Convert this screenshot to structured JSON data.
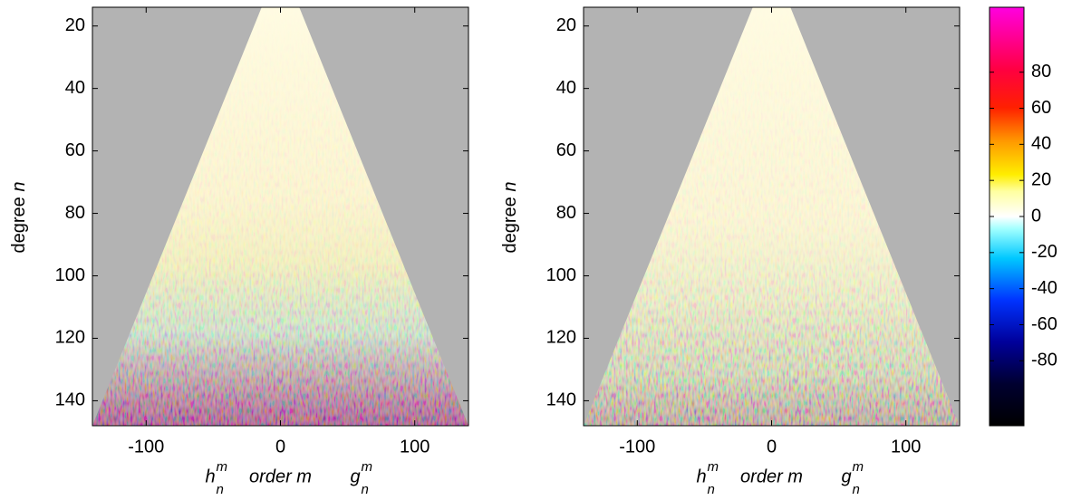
{
  "charts": [
    {
      "type": "heatmap",
      "ylabel": {
        "text": "degree",
        "var": "n"
      },
      "xlabel": {
        "left": {
          "base": "h",
          "sup": "m",
          "sub": "n"
        },
        "center": "order m",
        "right": {
          "base": "g",
          "sup": "m",
          "sub": "n"
        }
      },
      "xlim": [
        -140,
        140
      ],
      "xticks": [
        -100,
        0,
        100
      ],
      "ylim": [
        14,
        148
      ],
      "yticks": [
        20,
        40,
        60,
        80,
        100,
        120,
        140
      ]
    },
    {
      "type": "heatmap",
      "ylabel": {
        "text": "degree",
        "var": "n"
      },
      "xlabel": {
        "left": {
          "base": "h",
          "sup": "m",
          "sub": "n"
        },
        "center": "order m",
        "right": {
          "base": "g",
          "sup": "m",
          "sub": "n"
        }
      },
      "xlim": [
        -140,
        140
      ],
      "xticks": [
        -100,
        0,
        100
      ],
      "ylim": [
        14,
        148
      ],
      "yticks": [
        20,
        40,
        60,
        80,
        100,
        120,
        140
      ]
    }
  ],
  "colorbar": {
    "clim": [
      -116,
      116
    ],
    "ticks": [
      -80,
      -60,
      -40,
      -20,
      0,
      20,
      40,
      60,
      80
    ]
  }
}
